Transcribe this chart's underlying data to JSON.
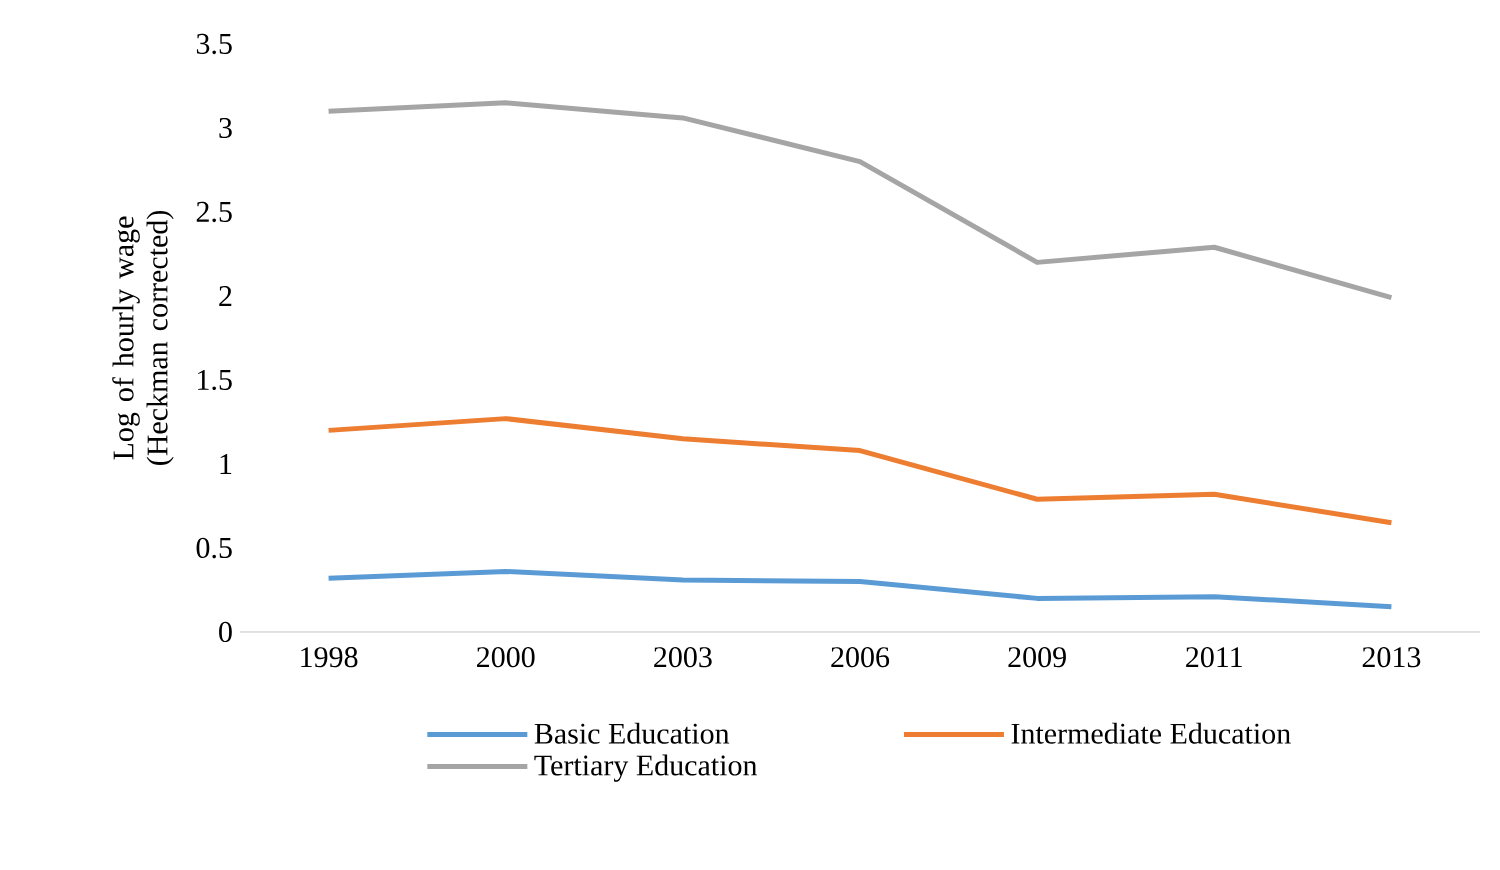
{
  "chart_data": {
    "type": "line",
    "ylabel": "Log of hourly wage (Heckman corrected)",
    "categories": [
      "1998",
      "2000",
      "2003",
      "2006",
      "2009",
      "2011",
      "2013"
    ],
    "series": [
      {
        "name": "Basic Education",
        "color": "#5b9bd5",
        "values": [
          0.32,
          0.36,
          0.31,
          0.3,
          0.2,
          0.21,
          0.15
        ]
      },
      {
        "name": "Intermediate Education",
        "color": "#ed7d31",
        "values": [
          1.2,
          1.27,
          1.15,
          1.08,
          0.79,
          0.82,
          0.65
        ]
      },
      {
        "name": "Tertiary Education",
        "color": "#a5a5a5",
        "values": [
          3.1,
          3.15,
          3.06,
          2.8,
          2.2,
          2.29,
          1.99
        ]
      }
    ],
    "ylim": [
      0,
      3.5
    ],
    "yticks": [
      0,
      0.5,
      1,
      1.5,
      2,
      2.5,
      3,
      3.5
    ],
    "grid": false,
    "legend": "bottom",
    "marker": "none",
    "line_style": "solid"
  }
}
